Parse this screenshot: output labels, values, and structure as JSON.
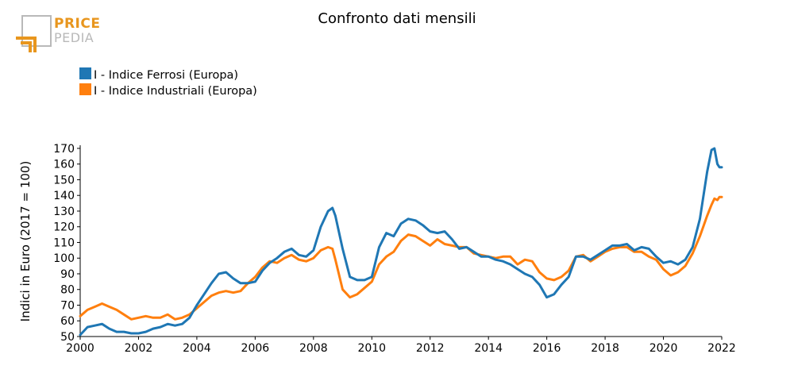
{
  "logo": {
    "word1": "PRICE",
    "word2": "PEDIA"
  },
  "chart_data": {
    "type": "line",
    "title": "Confronto dati mensili",
    "ylabel": "Indici in Euro (2017 = 100)",
    "xlabel": "",
    "xlim": [
      2000,
      2022
    ],
    "ylim": [
      50,
      172
    ],
    "xticks": [
      2000,
      2002,
      2004,
      2006,
      2008,
      2010,
      2012,
      2014,
      2016,
      2018,
      2020,
      2022
    ],
    "yticks": [
      50,
      60,
      70,
      80,
      90,
      100,
      110,
      120,
      130,
      140,
      150,
      160,
      170
    ],
    "grid": false,
    "legend": "top-left",
    "series": [
      {
        "name": "I - Indice Ferrosi (Europa)",
        "color": "#1f77b4",
        "x": [
          2000.0,
          2000.25,
          2000.5,
          2000.75,
          2001.0,
          2001.25,
          2001.5,
          2001.75,
          2002.0,
          2002.25,
          2002.5,
          2002.75,
          2003.0,
          2003.25,
          2003.5,
          2003.75,
          2004.0,
          2004.25,
          2004.5,
          2004.75,
          2005.0,
          2005.25,
          2005.5,
          2005.75,
          2006.0,
          2006.25,
          2006.5,
          2006.75,
          2007.0,
          2007.25,
          2007.5,
          2007.75,
          2008.0,
          2008.25,
          2008.5,
          2008.65,
          2008.75,
          2009.0,
          2009.25,
          2009.5,
          2009.75,
          2010.0,
          2010.25,
          2010.5,
          2010.75,
          2011.0,
          2011.25,
          2011.5,
          2011.75,
          2012.0,
          2012.25,
          2012.5,
          2012.75,
          2013.0,
          2013.25,
          2013.5,
          2013.75,
          2014.0,
          2014.25,
          2014.5,
          2014.75,
          2015.0,
          2015.25,
          2015.5,
          2015.75,
          2016.0,
          2016.25,
          2016.5,
          2016.75,
          2017.0,
          2017.25,
          2017.5,
          2017.75,
          2018.0,
          2018.25,
          2018.5,
          2018.75,
          2019.0,
          2019.25,
          2019.5,
          2019.75,
          2020.0,
          2020.25,
          2020.5,
          2020.75,
          2021.0,
          2021.25,
          2021.5,
          2021.65,
          2021.75,
          2021.85,
          2021.92,
          2022.0
        ],
        "values": [
          51,
          56,
          57,
          58,
          55,
          53,
          53,
          52,
          52,
          53,
          55,
          56,
          58,
          57,
          58,
          62,
          70,
          77,
          84,
          90,
          91,
          87,
          84,
          84,
          85,
          92,
          97,
          100,
          104,
          106,
          102,
          101,
          105,
          120,
          130,
          132,
          127,
          106,
          88,
          86,
          86,
          88,
          107,
          116,
          114,
          122,
          125,
          124,
          121,
          117,
          116,
          117,
          112,
          106,
          107,
          104,
          101,
          101,
          99,
          98,
          96,
          93,
          90,
          88,
          83,
          75,
          77,
          83,
          88,
          101,
          101,
          99,
          102,
          105,
          108,
          108,
          109,
          105,
          107,
          106,
          101,
          97,
          98,
          96,
          99,
          107,
          125,
          155,
          169,
          170,
          160,
          158,
          158
        ]
      },
      {
        "name": "I - Indice Industriali (Europa)",
        "color": "#ff7f0e",
        "x": [
          2000.0,
          2000.25,
          2000.5,
          2000.75,
          2001.0,
          2001.25,
          2001.5,
          2001.75,
          2002.0,
          2002.25,
          2002.5,
          2002.75,
          2003.0,
          2003.25,
          2003.5,
          2003.75,
          2004.0,
          2004.25,
          2004.5,
          2004.75,
          2005.0,
          2005.25,
          2005.5,
          2005.75,
          2006.0,
          2006.25,
          2006.5,
          2006.75,
          2007.0,
          2007.25,
          2007.5,
          2007.75,
          2008.0,
          2008.25,
          2008.5,
          2008.65,
          2008.75,
          2009.0,
          2009.25,
          2009.5,
          2009.75,
          2010.0,
          2010.25,
          2010.5,
          2010.75,
          2011.0,
          2011.25,
          2011.5,
          2011.75,
          2012.0,
          2012.25,
          2012.5,
          2012.75,
          2013.0,
          2013.25,
          2013.5,
          2013.75,
          2014.0,
          2014.25,
          2014.5,
          2014.75,
          2015.0,
          2015.25,
          2015.5,
          2015.75,
          2016.0,
          2016.25,
          2016.5,
          2016.75,
          2017.0,
          2017.25,
          2017.5,
          2017.75,
          2018.0,
          2018.25,
          2018.5,
          2018.75,
          2019.0,
          2019.25,
          2019.5,
          2019.75,
          2020.0,
          2020.25,
          2020.5,
          2020.75,
          2021.0,
          2021.25,
          2021.5,
          2021.65,
          2021.75,
          2021.85,
          2021.92,
          2022.0
        ],
        "values": [
          63,
          67,
          69,
          71,
          69,
          67,
          64,
          61,
          62,
          63,
          62,
          62,
          64,
          61,
          62,
          64,
          68,
          72,
          76,
          78,
          79,
          78,
          79,
          84,
          88,
          94,
          98,
          97,
          100,
          102,
          99,
          98,
          100,
          105,
          107,
          106,
          99,
          80,
          75,
          77,
          81,
          85,
          96,
          101,
          104,
          111,
          115,
          114,
          111,
          108,
          112,
          109,
          108,
          107,
          107,
          103,
          102,
          101,
          100,
          101,
          101,
          96,
          99,
          98,
          91,
          87,
          86,
          88,
          92,
          101,
          102,
          98,
          101,
          104,
          106,
          107,
          107,
          104,
          104,
          101,
          99,
          93,
          89,
          91,
          95,
          103,
          114,
          127,
          134,
          138,
          137,
          139,
          139
        ]
      }
    ]
  }
}
